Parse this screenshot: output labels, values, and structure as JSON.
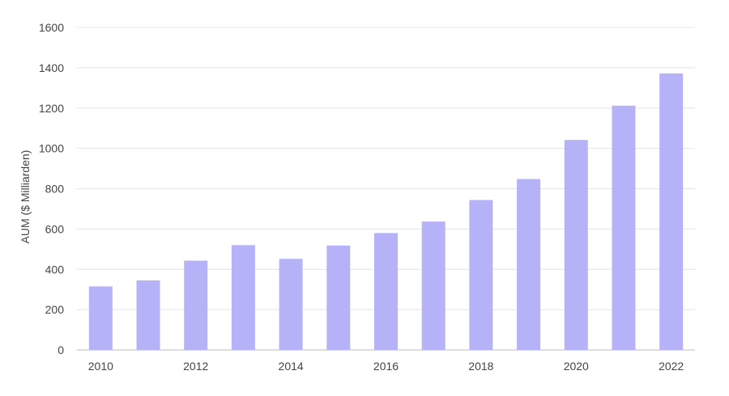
{
  "chart_data": {
    "type": "bar",
    "title": "",
    "xlabel": "",
    "ylabel": "AUM ($ Milliarden)",
    "categories": [
      "2010",
      "2011",
      "2012",
      "2013",
      "2014",
      "2015",
      "2016",
      "2017",
      "2018",
      "2019",
      "2020",
      "2021",
      "2022"
    ],
    "x_tick_labels": [
      "2010",
      "",
      "2012",
      "",
      "2014",
      "",
      "2016",
      "",
      "2018",
      "",
      "2020",
      "",
      "2022"
    ],
    "values": [
      315,
      345,
      443,
      520,
      452,
      518,
      580,
      637,
      744,
      848,
      1042,
      1212,
      1372
    ],
    "ylim": [
      0,
      1600
    ],
    "y_ticks": [
      0,
      200,
      400,
      600,
      800,
      1000,
      1200,
      1400,
      1600
    ],
    "grid": true,
    "legend": "none",
    "colors": {
      "bar": "#b6b2f7",
      "grid": "#e4e4e4",
      "text": "#444444"
    }
  }
}
